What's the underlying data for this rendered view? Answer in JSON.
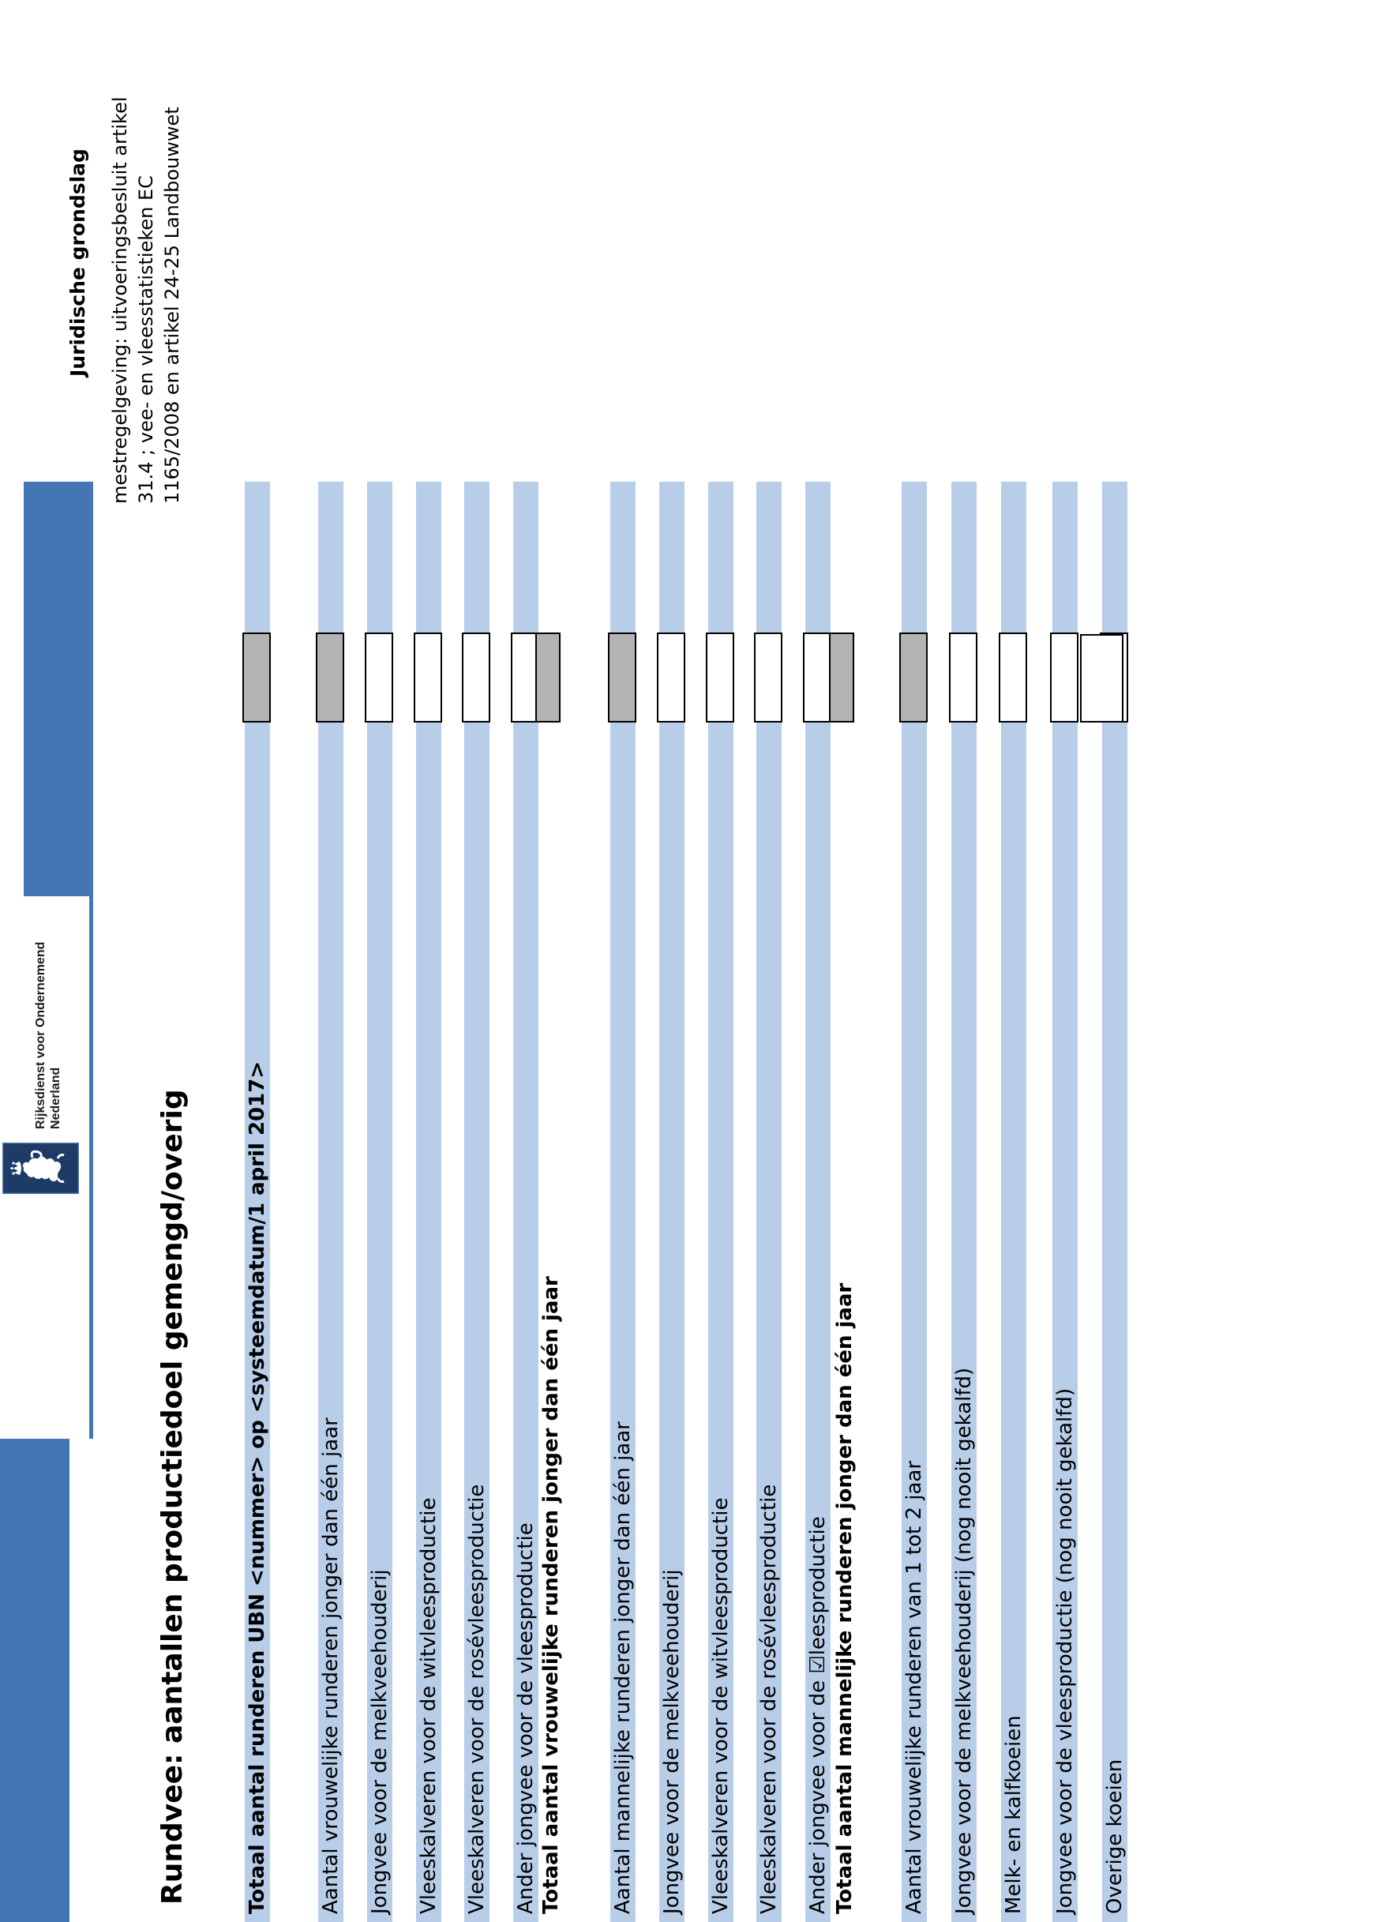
{
  "document": {
    "title": "Rundvee: aantallen productiedoel gemengd/overig",
    "logo": {
      "emblem": "dutch-royal-coat-of-arms",
      "org_line1": "Rijksdienst voor Ondernemend",
      "org_line2": "Nederland"
    },
    "legal_basis": {
      "heading": "Juridische grondslag",
      "lines": [
        "mestregelgeving: uitvoeringsbesluit artikel",
        "31.4 ; vee- en vleesstatistieken EC",
        "1165/2008 en artikel 24-25 Landbouwwet"
      ]
    },
    "colors": {
      "bar_blue": "#4576b4",
      "emblem_navy": "#1e3a66",
      "stripe_blue": "#b8cde8",
      "field_gray": "#b3b3b3"
    },
    "form": {
      "rows": [
        {
          "label": "Totaal aantal runderen UBN <nummer> op <systeemdatum/1 april 2017>",
          "bold": true,
          "striped": true,
          "field": "gray"
        },
        {
          "label": "Aantal vrouwelijke runderen jonger dan één jaar",
          "bold": false,
          "striped": true,
          "field": "gray"
        },
        {
          "label": "Jongvee voor de melkveehouderij",
          "bold": false,
          "striped": true,
          "field": "white"
        },
        {
          "label": "Vleeskalveren voor de witvleesproductie",
          "bold": false,
          "striped": true,
          "field": "white"
        },
        {
          "label": "Vleeskalveren voor de rosévleesproductie",
          "bold": false,
          "striped": true,
          "field": "white"
        },
        {
          "label": "Ander jongvee voor de vleesproductie",
          "bold": false,
          "striped": true,
          "field": "white"
        },
        {
          "label": "Totaal aantal vrouwelijke runderen jonger dan één jaar",
          "bold": true,
          "striped": false,
          "field": "gray-total"
        },
        {
          "label": "Aantal mannelijke runderen jonger dan één jaar",
          "bold": false,
          "striped": true,
          "field": "gray"
        },
        {
          "label": "Jongvee voor de melkveehouderij",
          "bold": false,
          "striped": true,
          "field": "white"
        },
        {
          "label": "Vleeskalveren voor de witvleesproductie",
          "bold": false,
          "striped": true,
          "field": "white"
        },
        {
          "label": "Vleeskalveren voor de rosévleesproductie",
          "bold": false,
          "striped": true,
          "field": "white"
        },
        {
          "label": "Ander jongvee voor de ☑leesproductie",
          "bold": false,
          "striped": true,
          "field": "white"
        },
        {
          "label": "Totaal aantal mannelijke runderen jonger dan één jaar",
          "bold": true,
          "striped": false,
          "field": "gray-total"
        },
        {
          "label": "Aantal vrouwelijke runderen van 1 tot 2 jaar",
          "bold": false,
          "striped": true,
          "field": "gray"
        },
        {
          "label": "Jongvee voor de melkveehouderij (nog nooit gekalfd)",
          "bold": false,
          "striped": true,
          "field": "white"
        },
        {
          "label": "Melk- en kalfkoeien",
          "bold": false,
          "striped": true,
          "field": "white"
        },
        {
          "label": "Jongvee voor de vleesproductie (nog nooit gekalfd)",
          "bold": false,
          "striped": true,
          "field": "white"
        },
        {
          "label": "Overige koeien",
          "bold": false,
          "striped": true,
          "field": "double-white"
        }
      ]
    }
  }
}
